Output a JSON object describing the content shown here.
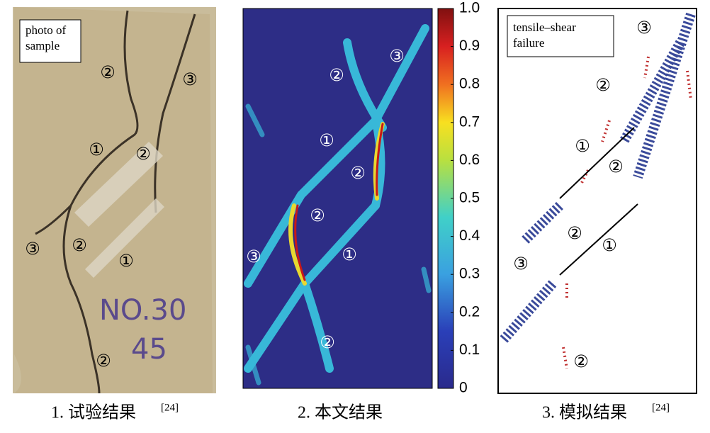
{
  "panels": [
    {
      "label": "photo of sample",
      "caption": "1. 试验结果",
      "ref": "[24]",
      "sample_marking": [
        "NO.30",
        "45"
      ],
      "annotations": [
        "②",
        "③",
        "①",
        "②",
        "③",
        "②",
        "①",
        "②"
      ]
    },
    {
      "caption": "2. 本文结果",
      "annotations": [
        "③",
        "②",
        "①",
        "②",
        "②",
        "③",
        "①",
        "②"
      ]
    },
    {
      "label": "tensile–shear failure",
      "caption": "3. 模拟结果",
      "ref": "[24]",
      "annotations": [
        "③",
        "②",
        "①",
        "②",
        "②",
        "①",
        "③",
        "②"
      ]
    }
  ],
  "colorbar": {
    "lim": [
      0,
      1
    ],
    "ticks": [
      0,
      0.1,
      0.2,
      0.3,
      0.4,
      0.5,
      0.6,
      0.7,
      0.8,
      0.9,
      {
        "value": 1,
        "label": "1.0"
      }
    ]
  }
}
